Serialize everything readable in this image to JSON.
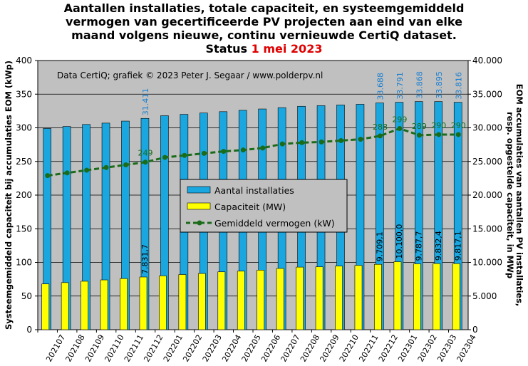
{
  "title": {
    "line1": "Aantallen installaties, totale capaciteit, en systeemgemiddeld",
    "line2": "vermogen van gecertificeerde PV projecten aan eind van elke",
    "line3": "maand volgens nieuwe, continu vernieuwde CertiQ dataset.",
    "status_prefix": "Status ",
    "status_date": "1 mei 2023"
  },
  "credit": "Data CertiQ; grafiek © 2023 Peter J. Segaar / www.polderpv.nl",
  "colors": {
    "plot_bg": "#c0c0c0",
    "installaties": "#1aa7e0",
    "capaciteit": "#ffff00",
    "gemiddeld": "#1a6b1a",
    "label_blue": "#1a7fd0",
    "label_green": "#1a6b1a"
  },
  "chart_data": {
    "type": "bar",
    "categories": [
      "202107",
      "202108",
      "202109",
      "202110",
      "202111",
      "202112",
      "202201",
      "202202",
      "202203",
      "202204",
      "202205",
      "202206",
      "202207",
      "202208",
      "202209",
      "202210",
      "202211",
      "202212",
      "202301",
      "202302",
      "202303",
      "202304"
    ],
    "series": [
      {
        "name": "Aantal installaties",
        "axis": "left",
        "type": "bar",
        "values": [
          299,
          302,
          305,
          307,
          310,
          314,
          318,
          320,
          322,
          324,
          326,
          328,
          330,
          332,
          333,
          334,
          335,
          337,
          338,
          339,
          339,
          338
        ],
        "labels": {
          "5": "31.411",
          "17": "33.688",
          "18": "33.791",
          "19": "33.868",
          "20": "33.895",
          "21": "33.816"
        }
      },
      {
        "name": "Capaciteit (MW)",
        "axis": "left",
        "type": "bar",
        "values": [
          68,
          70,
          72,
          74,
          76,
          78.3,
          80,
          82,
          83.5,
          86,
          87,
          88.5,
          91,
          93,
          93.5,
          94.5,
          95.5,
          97.1,
          101.0,
          97.9,
          98.3,
          98.2
        ],
        "labels": {
          "5": "7.831,7",
          "17": "9.709,1",
          "18": "10.100,0",
          "19": "9.787,7",
          "20": "9.832,4",
          "21": "9.817,1"
        }
      },
      {
        "name": "Gemiddeld vermogen (kW)",
        "axis": "left",
        "type": "line",
        "values": [
          229,
          233,
          237,
          241,
          245,
          249,
          256,
          259,
          262,
          265,
          267,
          270,
          276,
          278,
          279,
          281,
          283,
          288,
          299,
          289,
          290,
          290
        ],
        "labels": {
          "5": "249",
          "17": "288",
          "18": "299",
          "19": "289",
          "20": "290",
          "21": "290"
        }
      }
    ],
    "ylim": [
      0,
      400
    ],
    "yticks": [
      "0",
      "50",
      "100",
      "150",
      "200",
      "250",
      "300",
      "350",
      "400"
    ],
    "ylabel": "Systeemgemiddeld capaciteit bij accumulaties EOM (kWp)",
    "y2lim": [
      0,
      40000
    ],
    "y2ticks": [
      "0",
      "5.000",
      "10.000",
      "15.000",
      "20.000",
      "25.000",
      "30.000",
      "35.000",
      "40.000"
    ],
    "y2label_line1": "EOM accumulaties van aantallen PV installaties,",
    "y2label_line2": "resp. opgestelde capaciteit, in MWp",
    "legend": [
      "Aantal installaties",
      "Capaciteit (MW)",
      "Gemiddeld vermogen (kW)"
    ],
    "legend_position": "center",
    "grid": "horizontal"
  }
}
